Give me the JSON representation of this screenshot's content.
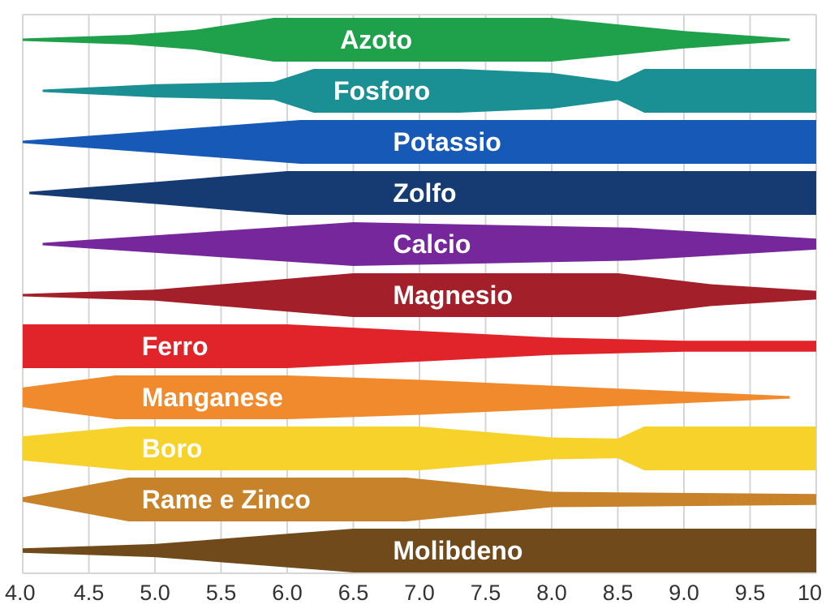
{
  "chart_data": {
    "type": "area",
    "title": "",
    "xlabel": "",
    "ylabel": "",
    "xlim": [
      4.0,
      10.0
    ],
    "grid": true,
    "x_ticks": [
      "4.0",
      "4.5",
      "5.0",
      "5.5",
      "6.0",
      "6.5",
      "7.0",
      "7.5",
      "8.0",
      "8.5",
      "9.0",
      "9.5",
      "10"
    ],
    "series": [
      {
        "name": "Azoto",
        "color": "#1ea14a",
        "label_x": 6.4,
        "profile": [
          [
            4.0,
            0.05
          ],
          [
            4.8,
            0.22
          ],
          [
            5.3,
            0.45
          ],
          [
            5.9,
            1.0
          ],
          [
            7.0,
            1.0
          ],
          [
            8.0,
            1.0
          ],
          [
            9.0,
            0.4
          ],
          [
            9.8,
            0.05
          ]
        ]
      },
      {
        "name": "Fosforo",
        "color": "#1a9095",
        "label_x": 6.35,
        "profile": [
          [
            4.15,
            0.05
          ],
          [
            5.0,
            0.3
          ],
          [
            5.9,
            0.42
          ],
          [
            6.2,
            1.0
          ],
          [
            7.3,
            1.0
          ],
          [
            8.0,
            0.82
          ],
          [
            8.5,
            0.42
          ],
          [
            8.7,
            1.0
          ],
          [
            10.0,
            1.0
          ]
        ]
      },
      {
        "name": "Potassio",
        "color": "#1659b7",
        "label_x": 6.8,
        "profile": [
          [
            4.0,
            0.05
          ],
          [
            5.0,
            0.5
          ],
          [
            6.1,
            1.0
          ],
          [
            10.0,
            1.0
          ]
        ]
      },
      {
        "name": "Zolfo",
        "color": "#163b72",
        "label_x": 6.8,
        "profile": [
          [
            4.05,
            0.05
          ],
          [
            5.0,
            0.5
          ],
          [
            6.0,
            1.0
          ],
          [
            10.0,
            1.0
          ]
        ]
      },
      {
        "name": "Calcio",
        "color": "#76279b",
        "label_x": 6.8,
        "profile": [
          [
            4.15,
            0.05
          ],
          [
            5.0,
            0.4
          ],
          [
            6.5,
            1.0
          ],
          [
            8.6,
            0.75
          ],
          [
            10.0,
            0.25
          ]
        ]
      },
      {
        "name": "Magnesio",
        "color": "#a3202a",
        "label_x": 6.8,
        "profile": [
          [
            4.0,
            0.05
          ],
          [
            5.0,
            0.25
          ],
          [
            6.5,
            1.0
          ],
          [
            8.5,
            1.0
          ],
          [
            9.2,
            0.5
          ],
          [
            10.0,
            0.2
          ]
        ]
      },
      {
        "name": "Ferro",
        "color": "#e1242a",
        "label_x": 4.9,
        "profile": [
          [
            4.0,
            1.0
          ],
          [
            6.0,
            1.0
          ],
          [
            8.0,
            0.4
          ],
          [
            9.0,
            0.25
          ],
          [
            10.0,
            0.25
          ]
        ]
      },
      {
        "name": "Manganese",
        "color": "#f18a2c",
        "label_x": 4.9,
        "profile": [
          [
            4.0,
            0.45
          ],
          [
            4.7,
            1.0
          ],
          [
            6.0,
            1.0
          ],
          [
            7.0,
            0.8
          ],
          [
            8.5,
            0.4
          ],
          [
            9.8,
            0.05
          ]
        ]
      },
      {
        "name": "Boro",
        "color": "#f7d22a",
        "label_x": 4.9,
        "profile": [
          [
            4.0,
            0.55
          ],
          [
            4.8,
            1.0
          ],
          [
            7.0,
            1.0
          ],
          [
            8.0,
            0.5
          ],
          [
            8.5,
            0.45
          ],
          [
            8.7,
            1.0
          ],
          [
            10.0,
            1.0
          ]
        ]
      },
      {
        "name": "Rame e Zinco",
        "color": "#c7822a",
        "label_x": 4.9,
        "profile": [
          [
            4.0,
            0.1
          ],
          [
            4.8,
            1.0
          ],
          [
            6.9,
            1.0
          ],
          [
            8.0,
            0.35
          ],
          [
            10.0,
            0.25
          ]
        ]
      },
      {
        "name": "Molibdeno",
        "color": "#714a1b",
        "label_x": 6.8,
        "profile": [
          [
            4.0,
            0.1
          ],
          [
            5.0,
            0.3
          ],
          [
            6.5,
            1.0
          ],
          [
            10.0,
            1.0
          ]
        ]
      }
    ]
  }
}
